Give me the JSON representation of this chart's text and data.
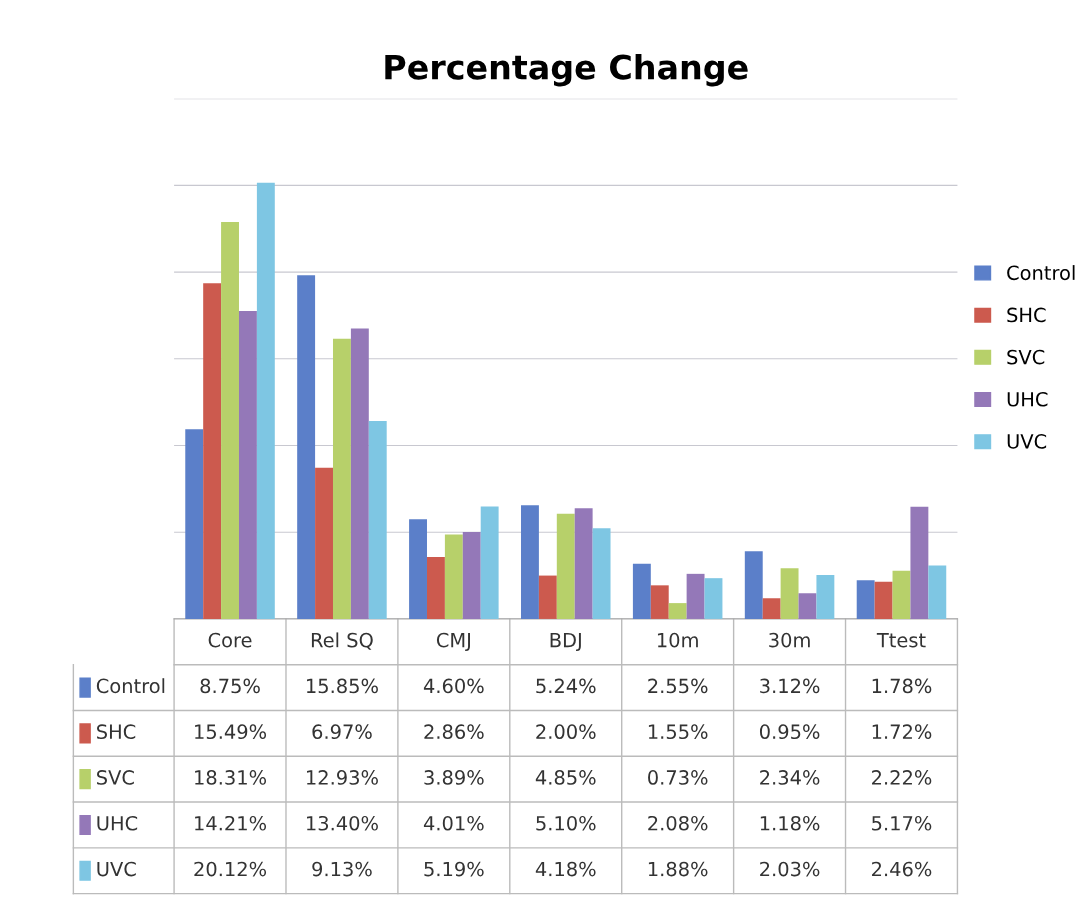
{
  "chart_data": {
    "type": "bar",
    "title": "Percentage Change",
    "categories": [
      "Core",
      "Rel SQ",
      "CMJ",
      "BDJ",
      "10m",
      "30m",
      "Ttest"
    ],
    "series": [
      {
        "name": "Control",
        "color": "#5b7fc9",
        "values": [
          8.75,
          15.85,
          4.6,
          5.24,
          2.55,
          3.12,
          1.78
        ],
        "value_labels": [
          "8.75%",
          "15.85%",
          "4.60%",
          "5.24%",
          "2.55%",
          "3.12%",
          "1.78%"
        ]
      },
      {
        "name": "SHC",
        "color": "#cc5a4e",
        "values": [
          15.49,
          6.97,
          2.86,
          2.0,
          1.55,
          0.95,
          1.72
        ],
        "value_labels": [
          "15.49%",
          "6.97%",
          "2.86%",
          "2.00%",
          "1.55%",
          "0.95%",
          "1.72%"
        ]
      },
      {
        "name": "SVC",
        "color": "#b7d06a",
        "values": [
          18.31,
          12.93,
          3.89,
          4.85,
          0.73,
          2.34,
          2.22
        ],
        "value_labels": [
          "18.31%",
          "12.93%",
          "3.89%",
          "4.85%",
          "0.73%",
          "2.34%",
          "2.22%"
        ]
      },
      {
        "name": "UHC",
        "color": "#9478b8",
        "values": [
          14.21,
          13.4,
          4.01,
          5.1,
          2.08,
          1.18,
          5.17
        ],
        "value_labels": [
          "14.21%",
          "13.40%",
          "4.01%",
          "5.10%",
          "2.08%",
          "1.18%",
          "5.17%"
        ]
      },
      {
        "name": "UVC",
        "color": "#7ec6e3",
        "values": [
          20.12,
          9.13,
          5.19,
          4.18,
          1.88,
          2.03,
          2.46
        ],
        "value_labels": [
          "20.12%",
          "9.13%",
          "5.19%",
          "4.18%",
          "1.88%",
          "2.03%",
          "2.46%"
        ]
      }
    ],
    "ylim": [
      0,
      24
    ],
    "yticks": [
      {
        "value": 0,
        "label": null
      },
      {
        "value": 4,
        "label": null
      },
      {
        "value": 8,
        "label": null
      },
      {
        "value": 12,
        "label": null
      },
      {
        "value": 16,
        "label": null
      },
      {
        "value": 20,
        "label": null
      },
      {
        "value": 24,
        "label": null
      }
    ],
    "grid": "y",
    "legend": "right",
    "tick_labels": "x"
  }
}
